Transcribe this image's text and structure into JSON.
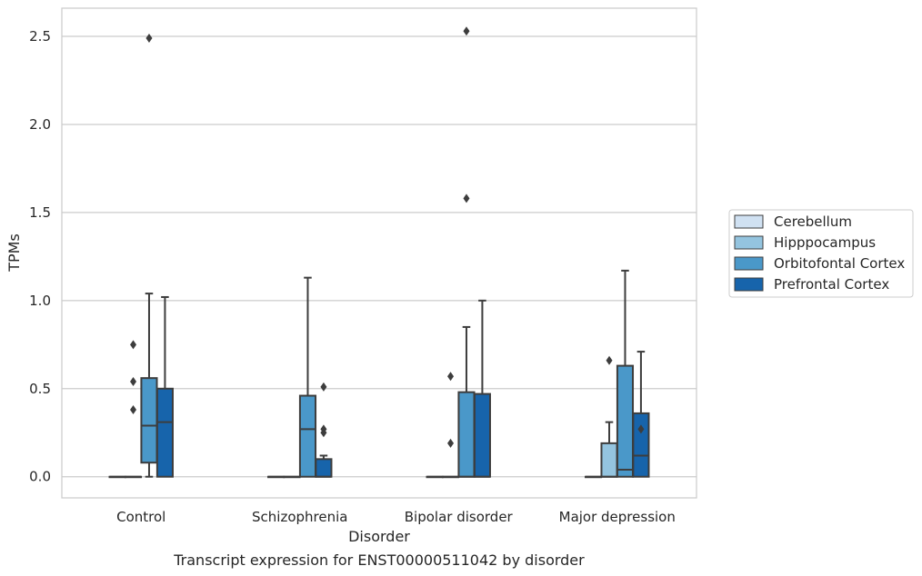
{
  "chart_data": {
    "type": "box",
    "caption": "Transcript expression for ENST00000511042 by disorder",
    "xlabel": "Disorder",
    "ylabel": "TPMs",
    "ylim": [
      -0.12,
      2.66
    ],
    "yticks": [
      0.0,
      0.5,
      1.0,
      1.5,
      2.0,
      2.5
    ],
    "ytick_labels": [
      "0.0",
      "0.5",
      "1.0",
      "1.5",
      "2.0",
      "2.5"
    ],
    "grid": "horizontal",
    "legend_position": "right",
    "categories": [
      "Control",
      "Schizophrenia",
      "Bipolar disorder",
      "Major depression"
    ],
    "series": [
      {
        "name": "Cerebellum",
        "color": "#d0e1f2",
        "boxes": [
          {
            "whislo": 0,
            "q1": 0,
            "med": 0,
            "q3": 0,
            "whishi": 0,
            "fliers": []
          },
          {
            "whislo": 0,
            "q1": 0,
            "med": 0,
            "q3": 0,
            "whishi": 0,
            "fliers": []
          },
          {
            "whislo": 0,
            "q1": 0,
            "med": 0,
            "q3": 0,
            "whishi": 0,
            "fliers": []
          },
          {
            "whislo": 0,
            "q1": 0,
            "med": 0,
            "q3": 0,
            "whishi": 0,
            "fliers": []
          }
        ]
      },
      {
        "name": "Hipppocampus",
        "color": "#94c4df",
        "boxes": [
          {
            "whislo": 0,
            "q1": 0,
            "med": 0,
            "q3": 0,
            "whishi": 0,
            "fliers": [
              0.38,
              0.54,
              0.75
            ]
          },
          {
            "whislo": 0,
            "q1": 0,
            "med": 0,
            "q3": 0,
            "whishi": 0,
            "fliers": []
          },
          {
            "whislo": 0,
            "q1": 0,
            "med": 0,
            "q3": 0,
            "whishi": 0,
            "fliers": [
              0.19,
              0.57
            ]
          },
          {
            "whislo": 0,
            "q1": 0,
            "med": 0,
            "q3": 0.19,
            "whishi": 0.31,
            "fliers": [
              0.66
            ]
          }
        ]
      },
      {
        "name": "Orbitofontal Cortex",
        "color": "#4a98c9",
        "boxes": [
          {
            "whislo": 0,
            "q1": 0.08,
            "med": 0.29,
            "q3": 0.56,
            "whishi": 1.04,
            "fliers": [
              2.49
            ]
          },
          {
            "whislo": 0,
            "q1": 0,
            "med": 0.27,
            "q3": 0.46,
            "whishi": 1.13,
            "fliers": []
          },
          {
            "whislo": 0,
            "q1": 0,
            "med": 0,
            "q3": 0.48,
            "whishi": 0.85,
            "fliers": [
              1.58,
              2.53
            ]
          },
          {
            "whislo": 0,
            "q1": 0,
            "med": 0.04,
            "q3": 0.63,
            "whishi": 1.17,
            "fliers": []
          }
        ]
      },
      {
        "name": "Prefrontal Cortex",
        "color": "#1764ab",
        "boxes": [
          {
            "whislo": 0,
            "q1": 0,
            "med": 0.31,
            "q3": 0.5,
            "whishi": 1.02,
            "fliers": []
          },
          {
            "whislo": 0,
            "q1": 0,
            "med": 0,
            "q3": 0.1,
            "whishi": 0.12,
            "fliers": [
              0.25,
              0.27,
              0.51
            ]
          },
          {
            "whislo": 0,
            "q1": 0,
            "med": 0,
            "q3": 0.47,
            "whishi": 1.0,
            "fliers": []
          },
          {
            "whislo": 0,
            "q1": 0,
            "med": 0.12,
            "q3": 0.36,
            "whishi": 0.71,
            "fliers": [
              0.27
            ]
          }
        ]
      }
    ]
  }
}
